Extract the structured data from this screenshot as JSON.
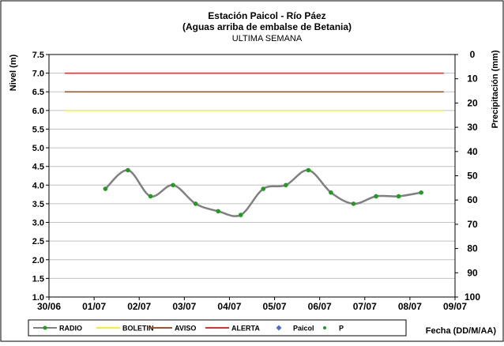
{
  "chart_data": {
    "type": "line",
    "title": "Estación Paicol  - Río Páez",
    "subtitle": "(Aguas arriba de embalse de Betania)",
    "subtitle2": "ULTIMA SEMANA",
    "ylabel": "Nivel (m)",
    "y2label": "Precipitación (mm)",
    "xlabel": "Fecha (DD/M/AA)",
    "ylim": [
      1.0,
      7.5
    ],
    "yticks": [
      "1.0",
      "1.5",
      "2.0",
      "2.5",
      "3.0",
      "3.5",
      "4.0",
      "4.5",
      "5.0",
      "5.5",
      "6.0",
      "6.5",
      "7.0",
      "7.5"
    ],
    "y2lim": [
      0,
      100
    ],
    "y2ticks": [
      "0",
      "10",
      "20",
      "30",
      "40",
      "50",
      "60",
      "70",
      "80",
      "90",
      "100"
    ],
    "y2_reversed": true,
    "xlim": [
      0,
      9
    ],
    "xticks": [
      "30/06",
      "01/07",
      "02/07",
      "03/07",
      "04/07",
      "05/07",
      "06/07",
      "07/07",
      "08/07",
      "09/07"
    ],
    "grid": "horizontal",
    "legend_position": "bottom",
    "thresholds": [
      {
        "name": "ALERTA",
        "value": 7.0,
        "color": "#e03030"
      },
      {
        "name": "AVISO",
        "value": 6.5,
        "color": "#a0522d"
      },
      {
        "name": "BOLETIN",
        "value": 6.0,
        "color": "#f2f233"
      }
    ],
    "threshold_x_range": [
      0.35,
      8.75
    ],
    "series": [
      {
        "name": "RADIO",
        "color": "#808080",
        "marker_color": "#1e9e1e",
        "x": [
          1.25,
          1.75,
          2.25,
          2.75,
          3.25,
          3.75,
          4.25,
          4.75,
          5.25,
          5.75,
          6.25,
          6.75,
          7.25,
          7.75,
          8.25
        ],
        "values": [
          3.9,
          4.4,
          3.7,
          4.0,
          3.5,
          3.3,
          3.2,
          3.9,
          4.0,
          4.4,
          3.8,
          3.5,
          3.7,
          3.7,
          3.8
        ]
      }
    ],
    "legend": [
      {
        "label": "RADIO",
        "kind": "line-marker",
        "color": "#808080",
        "marker": "#1e9e1e"
      },
      {
        "label": "BOLETIN",
        "kind": "line",
        "color": "#f2f233"
      },
      {
        "label": "AVISO",
        "kind": "line",
        "color": "#a0522d"
      },
      {
        "label": "ALERTA",
        "kind": "line",
        "color": "#e03030"
      },
      {
        "label": "Paicol",
        "kind": "diamond",
        "color": "#4a6fd1"
      },
      {
        "label": "P",
        "kind": "dot",
        "color": "#1e9e1e"
      }
    ]
  }
}
